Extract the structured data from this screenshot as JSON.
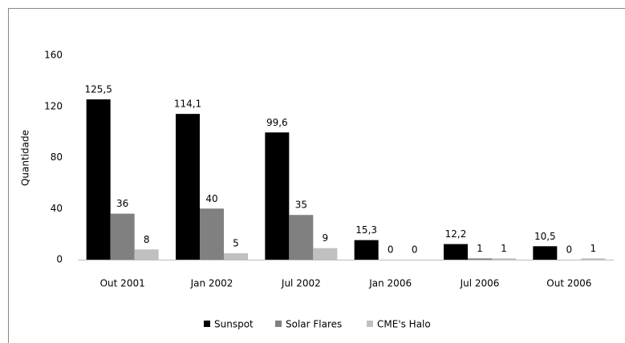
{
  "chart_data": {
    "type": "bar",
    "y_label": "Quantidade",
    "categories": [
      "Out 2001",
      "Jan 2002",
      "Jul 2002",
      "Jan 2006",
      "Jul 2006",
      "Out 2006"
    ],
    "series": [
      {
        "name": "Sunspot",
        "color": "#000000",
        "values": [
          125.5,
          114.1,
          99.6,
          15.3,
          12.2,
          10.5
        ],
        "value_labels": [
          "125,5",
          "114,1",
          "99,6",
          "15,3",
          "12,2",
          "10,5"
        ]
      },
      {
        "name": "Solar Flares",
        "color": "#808080",
        "values": [
          36,
          40,
          35,
          0,
          1,
          0
        ]
      },
      {
        "name": "CME's Halo",
        "color": "#c0c0c0",
        "values": [
          8,
          5,
          9,
          0,
          1,
          1
        ]
      }
    ],
    "ylim": [
      0,
      160
    ],
    "yticks": [
      0,
      40,
      80,
      120,
      160
    ],
    "grid": false,
    "legend": "bottom"
  }
}
